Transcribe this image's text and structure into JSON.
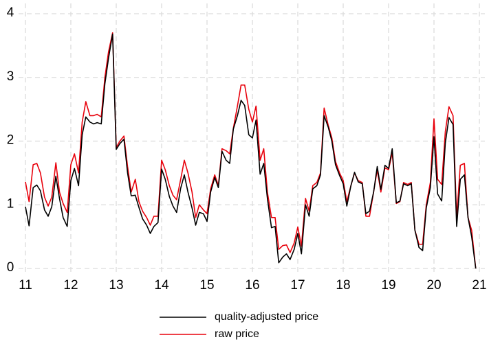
{
  "chart_data": {
    "type": "line",
    "x": [
      11,
      11.08,
      11.17,
      11.25,
      11.33,
      11.42,
      11.5,
      11.58,
      11.67,
      11.75,
      11.83,
      11.92,
      12,
      12.08,
      12.17,
      12.25,
      12.33,
      12.42,
      12.5,
      12.58,
      12.67,
      12.75,
      12.83,
      12.92,
      13,
      13.08,
      13.17,
      13.25,
      13.33,
      13.42,
      13.5,
      13.58,
      13.67,
      13.75,
      13.83,
      13.92,
      14,
      14.08,
      14.17,
      14.25,
      14.33,
      14.42,
      14.5,
      14.58,
      14.67,
      14.75,
      14.83,
      14.92,
      15,
      15.08,
      15.17,
      15.25,
      15.33,
      15.42,
      15.5,
      15.58,
      15.67,
      15.75,
      15.83,
      15.92,
      16,
      16.08,
      16.17,
      16.25,
      16.33,
      16.42,
      16.5,
      16.58,
      16.67,
      16.75,
      16.83,
      16.92,
      17,
      17.08,
      17.17,
      17.25,
      17.33,
      17.42,
      17.5,
      17.58,
      17.67,
      17.75,
      17.83,
      17.92,
      18,
      18.08,
      18.17,
      18.25,
      18.33,
      18.42,
      18.5,
      18.58,
      18.67,
      18.75,
      18.83,
      18.92,
      19,
      19.08,
      19.17,
      19.25,
      19.33,
      19.42,
      19.5,
      19.58,
      19.67,
      19.75,
      19.83,
      19.92,
      20,
      20.08,
      20.17,
      20.25,
      20.33,
      20.42,
      20.5,
      20.58,
      20.67,
      20.75,
      20.83,
      20.92
    ],
    "series": [
      {
        "name": "quality-adjusted price",
        "color": "#000000",
        "values": [
          0.97,
          0.67,
          1.27,
          1.31,
          1.22,
          0.92,
          0.82,
          0.97,
          1.45,
          1.1,
          0.8,
          0.66,
          1.38,
          1.57,
          1.3,
          2.1,
          2.38,
          2.3,
          2.27,
          2.29,
          2.27,
          2.9,
          3.3,
          3.68,
          1.87,
          1.96,
          2.03,
          1.5,
          1.14,
          1.15,
          0.96,
          0.78,
          0.68,
          0.55,
          0.66,
          0.72,
          1.56,
          1.4,
          1.13,
          0.98,
          0.88,
          1.26,
          1.47,
          1.2,
          0.95,
          0.68,
          0.88,
          0.86,
          0.74,
          1.2,
          1.43,
          1.27,
          1.84,
          1.7,
          1.65,
          2.19,
          2.4,
          2.64,
          2.56,
          2.1,
          2.05,
          2.33,
          1.48,
          1.65,
          1.1,
          0.64,
          0.66,
          0.09,
          0.18,
          0.23,
          0.14,
          0.3,
          0.55,
          0.23,
          1.0,
          0.82,
          1.25,
          1.3,
          1.47,
          2.4,
          2.22,
          2.0,
          1.63,
          1.46,
          1.33,
          0.98,
          1.3,
          1.51,
          1.36,
          1.33,
          0.86,
          0.9,
          1.2,
          1.6,
          1.24,
          1.62,
          1.57,
          1.88,
          1.03,
          1.06,
          1.33,
          1.3,
          1.33,
          0.6,
          0.33,
          0.28,
          0.95,
          1.27,
          2.07,
          1.17,
          1.06,
          1.97,
          2.37,
          2.26,
          0.66,
          1.4,
          1.47,
          0.8,
          0.5,
          0.0
        ]
      },
      {
        "name": "raw price",
        "color": "#e8000b",
        "values": [
          1.36,
          1.05,
          1.63,
          1.65,
          1.5,
          1.12,
          0.98,
          1.12,
          1.66,
          1.2,
          1.02,
          0.88,
          1.63,
          1.8,
          1.5,
          2.3,
          2.62,
          2.4,
          2.4,
          2.42,
          2.38,
          3.0,
          3.4,
          3.7,
          1.9,
          2.0,
          2.08,
          1.6,
          1.2,
          1.4,
          1.05,
          0.9,
          0.8,
          0.68,
          0.82,
          0.82,
          1.7,
          1.55,
          1.3,
          1.15,
          1.08,
          1.4,
          1.7,
          1.5,
          1.2,
          0.8,
          1.0,
          0.92,
          0.86,
          1.25,
          1.47,
          1.3,
          1.88,
          1.85,
          1.8,
          2.2,
          2.55,
          2.88,
          2.88,
          2.5,
          2.3,
          2.55,
          1.7,
          1.88,
          1.2,
          0.8,
          0.8,
          0.3,
          0.36,
          0.37,
          0.25,
          0.4,
          0.65,
          0.35,
          1.1,
          0.9,
          1.3,
          1.35,
          1.5,
          2.52,
          2.25,
          2.05,
          1.68,
          1.5,
          1.38,
          1.05,
          1.3,
          1.5,
          1.38,
          1.35,
          0.82,
          0.82,
          1.2,
          1.55,
          1.2,
          1.58,
          1.55,
          1.82,
          1.02,
          1.05,
          1.35,
          1.32,
          1.35,
          0.6,
          0.38,
          0.38,
          1.0,
          1.35,
          2.35,
          1.4,
          1.32,
          2.15,
          2.54,
          2.4,
          0.8,
          1.62,
          1.65,
          0.8,
          0.6,
          0.0
        ]
      }
    ],
    "xlim": [
      11,
      21
    ],
    "xticks": [
      11,
      12,
      13,
      14,
      15,
      16,
      17,
      18,
      19,
      20,
      21
    ],
    "ylim": [
      0,
      4
    ],
    "yticks": [
      0,
      1,
      2,
      3,
      4
    ],
    "grid": true,
    "legend": "bottom"
  }
}
